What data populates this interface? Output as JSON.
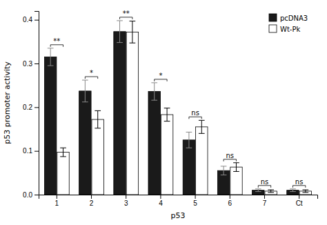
{
  "chart_data": {
    "type": "bar",
    "categories": [
      "1",
      "2",
      "3",
      "4",
      "5",
      "6",
      "7",
      "Ct"
    ],
    "series": [
      {
        "name": "pcDNA3",
        "color": "#1a1a1a",
        "values": [
          0.315,
          0.237,
          0.373,
          0.236,
          0.125,
          0.055,
          0.01,
          0.01
        ],
        "errors": [
          0.02,
          0.025,
          0.025,
          0.02,
          0.018,
          0.01,
          0.003,
          0.003
        ]
      },
      {
        "name": "Wt-Pk",
        "color": "#ffffff",
        "values": [
          0.097,
          0.172,
          0.372,
          0.183,
          0.155,
          0.063,
          0.008,
          0.008
        ],
        "errors": [
          0.01,
          0.02,
          0.025,
          0.015,
          0.015,
          0.01,
          0.003,
          0.003
        ]
      }
    ],
    "annotations": [
      "**",
      "*",
      "**",
      "*",
      "ns",
      "ns",
      "ns",
      "ns"
    ],
    "xlabel": "p53",
    "ylabel": "p53 promoter activity",
    "ylim": [
      0,
      0.42
    ],
    "yticks": [
      {
        "value": 0,
        "label": "0.0"
      },
      0.1,
      0.2,
      0.3,
      0.4
    ],
    "legend": "top-right",
    "grid": false
  }
}
